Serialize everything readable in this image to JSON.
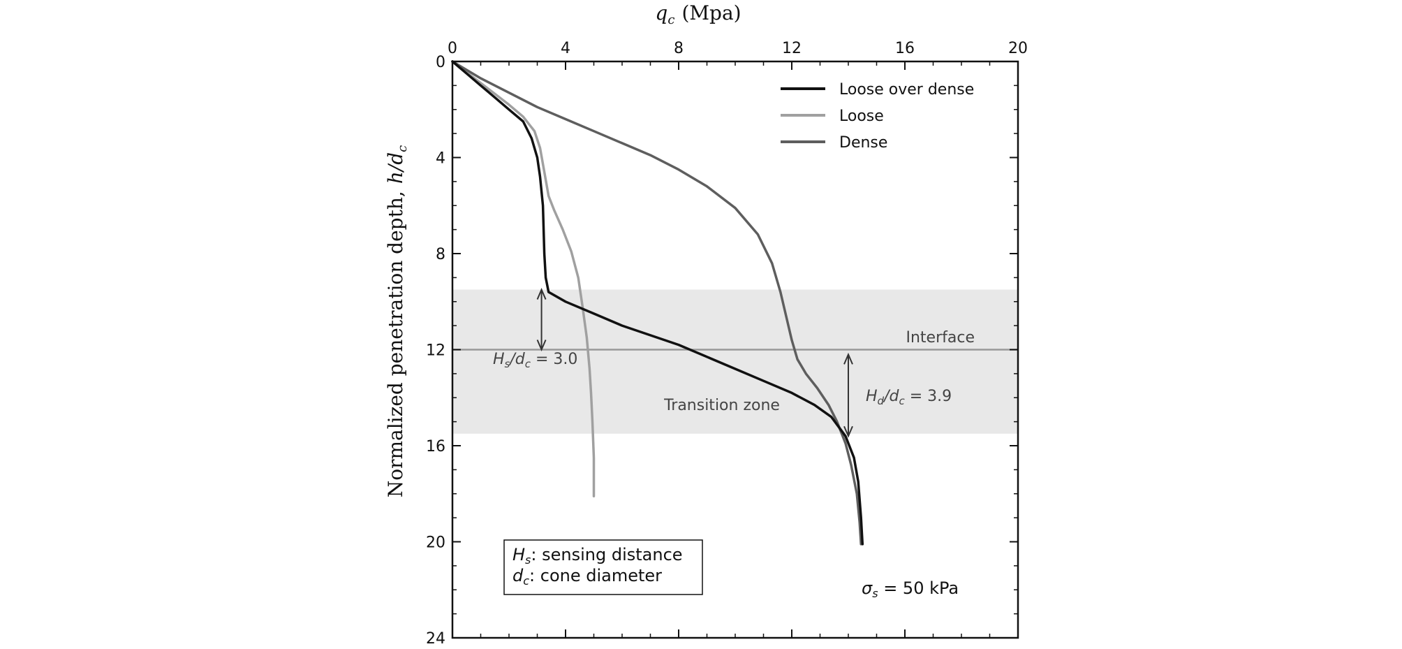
{
  "chart_data": {
    "type": "line",
    "title": "",
    "xlabel_symbol": "q",
    "xlabel_subscript": "c",
    "xlabel_unit": "(Mpa)",
    "ylabel_text": "Normalized penetration depth,",
    "ylabel_symbol": "h/d",
    "ylabel_subscript": "c",
    "xlim": [
      0,
      20
    ],
    "ylim": [
      0,
      24
    ],
    "y_inverted": true,
    "x_axis_position": "top",
    "xticks": [
      0,
      4,
      8,
      12,
      16,
      20
    ],
    "yticks": [
      0,
      4,
      8,
      12,
      16,
      20,
      24
    ],
    "grid": false,
    "legend_position": "top-right",
    "series": [
      {
        "name": "Loose over dense",
        "color": "#111111",
        "points": [
          [
            0,
            0
          ],
          [
            0.5,
            0.5
          ],
          [
            1.0,
            1.0
          ],
          [
            1.5,
            1.5
          ],
          [
            2.0,
            2.0
          ],
          [
            2.5,
            2.5
          ],
          [
            2.8,
            3.2
          ],
          [
            3.0,
            4.0
          ],
          [
            3.1,
            4.8
          ],
          [
            3.2,
            6.0
          ],
          [
            3.25,
            8.0
          ],
          [
            3.3,
            9.0
          ],
          [
            3.4,
            9.6
          ],
          [
            4.0,
            10.0
          ],
          [
            5.0,
            10.5
          ],
          [
            6.0,
            11.0
          ],
          [
            7.0,
            11.4
          ],
          [
            8.0,
            11.8
          ],
          [
            9.0,
            12.3
          ],
          [
            10.0,
            12.8
          ],
          [
            11.0,
            13.3
          ],
          [
            12.0,
            13.8
          ],
          [
            12.8,
            14.3
          ],
          [
            13.4,
            14.8
          ],
          [
            13.9,
            15.6
          ],
          [
            14.2,
            16.5
          ],
          [
            14.35,
            17.5
          ],
          [
            14.45,
            19.0
          ],
          [
            14.5,
            20.1
          ]
        ]
      },
      {
        "name": "Loose",
        "color": "#a0a0a0",
        "points": [
          [
            0,
            0
          ],
          [
            0.5,
            0.45
          ],
          [
            1.0,
            0.9
          ],
          [
            1.5,
            1.35
          ],
          [
            2.0,
            1.8
          ],
          [
            2.5,
            2.3
          ],
          [
            2.9,
            2.9
          ],
          [
            3.1,
            3.6
          ],
          [
            3.25,
            4.6
          ],
          [
            3.4,
            5.6
          ],
          [
            3.6,
            6.2
          ],
          [
            3.9,
            7.0
          ],
          [
            4.2,
            7.9
          ],
          [
            4.45,
            9.0
          ],
          [
            4.6,
            10.2
          ],
          [
            4.75,
            11.5
          ],
          [
            4.85,
            12.8
          ],
          [
            4.9,
            13.8
          ],
          [
            4.95,
            15.0
          ],
          [
            5.0,
            16.5
          ],
          [
            5.0,
            18.1
          ]
        ]
      },
      {
        "name": "Dense",
        "color": "#5e5e5e",
        "points": [
          [
            0,
            0
          ],
          [
            1.0,
            0.7
          ],
          [
            2.0,
            1.3
          ],
          [
            3.0,
            1.9
          ],
          [
            4.0,
            2.4
          ],
          [
            5.0,
            2.9
          ],
          [
            6.0,
            3.4
          ],
          [
            7.0,
            3.9
          ],
          [
            8.0,
            4.5
          ],
          [
            9.0,
            5.2
          ],
          [
            10.0,
            6.1
          ],
          [
            10.8,
            7.2
          ],
          [
            11.3,
            8.4
          ],
          [
            11.6,
            9.6
          ],
          [
            11.8,
            10.6
          ],
          [
            12.0,
            11.6
          ],
          [
            12.2,
            12.4
          ],
          [
            12.5,
            13.0
          ],
          [
            12.9,
            13.6
          ],
          [
            13.3,
            14.3
          ],
          [
            13.6,
            15.0
          ],
          [
            13.9,
            15.9
          ],
          [
            14.1,
            16.8
          ],
          [
            14.3,
            18.0
          ],
          [
            14.4,
            19.2
          ],
          [
            14.45,
            20.1
          ]
        ]
      }
    ],
    "shaded_band": {
      "label": "Transition zone",
      "y_range": [
        9.5,
        15.5
      ],
      "color": "#e8e8e8"
    },
    "interface_line": {
      "label": "Interface",
      "y": 12,
      "color": "#999999"
    },
    "arrows": [
      {
        "label_main": "H",
        "label_sub": "s",
        "label_rest": "/d",
        "label_sub2": "c",
        "label_value": " = 3.0",
        "x": 3.15,
        "y_from": 9.5,
        "y_to": 12
      },
      {
        "label_main": "H",
        "label_sub": "d",
        "label_rest": "/d",
        "label_sub2": "c",
        "label_value": " = 3.9",
        "x": 14.0,
        "y_from": 12.2,
        "y_to": 15.6
      }
    ],
    "note_box": {
      "line1_symbol": "H",
      "line1_sub": "s",
      "line1_text": ": sensing distance",
      "line2_symbol": "d",
      "line2_sub": "c",
      "line2_text": ": cone diameter"
    },
    "stress_label": {
      "symbol": "σ",
      "sub": "s",
      "text": " = 50 kPa"
    }
  }
}
